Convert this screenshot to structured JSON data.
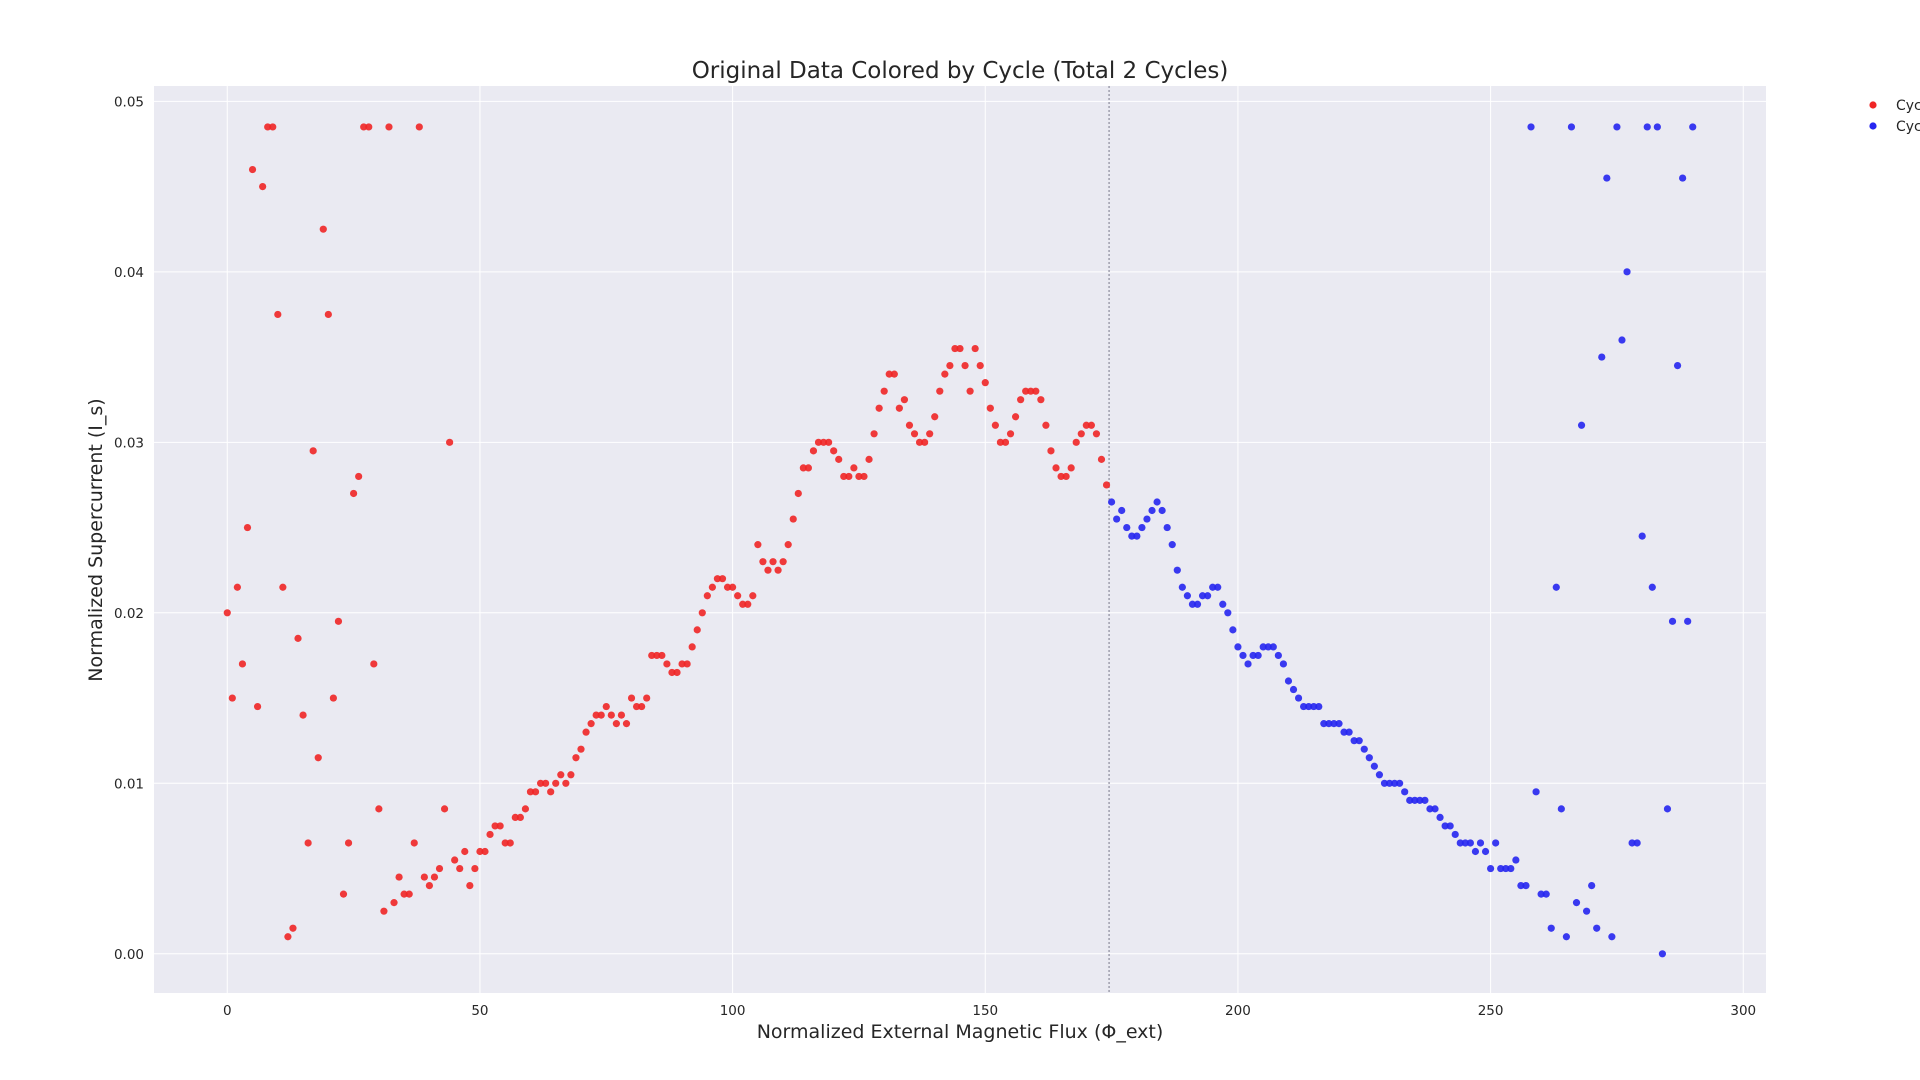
{
  "chart_data": {
    "type": "scatter",
    "title": "Original Data Colored by Cycle (Total 2 Cycles)",
    "xlabel": "Normalized External Magnetic Flux (Φ_ext)",
    "ylabel": "Normalized Supercurrent (I_s)",
    "xlim": [
      -14.5,
      304.5
    ],
    "ylim": [
      -0.0023,
      0.0509
    ],
    "xticks": [
      0,
      50,
      100,
      150,
      200,
      250,
      300
    ],
    "yticks": [
      0.0,
      0.01,
      0.02,
      0.03,
      0.04,
      0.05
    ],
    "xtick_labels": [
      "0",
      "50",
      "100",
      "150",
      "200",
      "250",
      "300"
    ],
    "ytick_labels": [
      "0.00",
      "0.01",
      "0.02",
      "0.03",
      "0.04",
      "0.05"
    ],
    "grid": true,
    "cycle_boundary_x": 174.5,
    "legend_placement": "upper-right outside",
    "colors": {
      "plot_bg": "#eaeaf2",
      "cycle1": "#f02626",
      "cycle2": "#2626f0",
      "boundary": "#8c8c9c"
    },
    "series": [
      {
        "name": "Cyc",
        "color": "#f02626",
        "x": [
          0,
          1,
          2,
          3,
          4,
          5,
          6,
          7,
          8,
          9,
          10,
          11,
          12,
          13,
          14,
          15,
          16,
          17,
          18,
          19,
          20,
          21,
          22,
          23,
          24,
          25,
          26,
          27,
          28,
          29,
          30,
          31,
          32,
          33,
          34,
          35,
          36,
          37,
          38,
          39,
          40,
          41,
          42,
          43,
          44,
          45,
          46,
          47,
          48,
          49,
          50,
          51,
          52,
          53,
          54,
          55,
          56,
          57,
          58,
          59,
          60,
          61,
          62,
          63,
          64,
          65,
          66,
          67,
          68,
          69,
          70,
          71,
          72,
          73,
          74,
          75,
          76,
          77,
          78,
          79,
          80,
          81,
          82,
          83,
          84,
          85,
          86,
          87,
          88,
          89,
          90,
          91,
          92,
          93,
          94,
          95,
          96,
          97,
          98,
          99,
          100,
          101,
          102,
          103,
          104,
          105,
          106,
          107,
          108,
          109,
          110,
          111,
          112,
          113,
          114,
          115,
          116,
          117,
          118,
          119,
          120,
          121,
          122,
          123,
          124,
          125,
          126,
          127,
          128,
          129,
          130,
          131,
          132,
          133,
          134,
          135,
          136,
          137,
          138,
          139,
          140,
          141,
          142,
          143,
          144,
          145,
          146,
          147,
          148,
          149,
          150,
          151,
          152,
          153,
          154,
          155,
          156,
          157,
          158,
          159,
          160,
          161,
          162,
          163,
          164,
          165,
          166,
          167,
          168,
          169,
          170,
          171,
          172,
          173,
          174
        ],
        "y": [
          0.02,
          0.015,
          0.0215,
          0.017,
          0.025,
          0.046,
          0.0145,
          0.045,
          0.0485,
          0.0485,
          0.0375,
          0.0215,
          0.001,
          0.0015,
          0.0185,
          0.014,
          0.0065,
          0.0295,
          0.0115,
          0.0425,
          0.0375,
          0.015,
          0.0195,
          0.0035,
          0.0065,
          0.027,
          0.028,
          0.0485,
          0.0485,
          0.017,
          0.0085,
          0.0025,
          0.0485,
          0.003,
          0.0045,
          0.0035,
          0.0035,
          0.0065,
          0.0485,
          0.0045,
          0.004,
          0.0045,
          0.005,
          0.0085,
          0.03,
          0.0055,
          0.005,
          0.006,
          0.004,
          0.005,
          0.006,
          0.006,
          0.007,
          0.0075,
          0.0075,
          0.0065,
          0.0065,
          0.008,
          0.008,
          0.0085,
          0.0095,
          0.0095,
          0.01,
          0.01,
          0.0095,
          0.01,
          0.0105,
          0.01,
          0.0105,
          0.0115,
          0.012,
          0.013,
          0.0135,
          0.014,
          0.014,
          0.0145,
          0.014,
          0.0135,
          0.014,
          0.0135,
          0.015,
          0.0145,
          0.0145,
          0.015,
          0.0175,
          0.0175,
          0.0175,
          0.017,
          0.0165,
          0.0165,
          0.017,
          0.017,
          0.018,
          0.019,
          0.02,
          0.021,
          0.0215,
          0.022,
          0.022,
          0.0215,
          0.0215,
          0.021,
          0.0205,
          0.0205,
          0.021,
          0.024,
          0.023,
          0.0225,
          0.023,
          0.0225,
          0.023,
          0.024,
          0.0255,
          0.027,
          0.0285,
          0.0285,
          0.0295,
          0.03,
          0.03,
          0.03,
          0.0295,
          0.029,
          0.028,
          0.028,
          0.0285,
          0.028,
          0.028,
          0.029,
          0.0305,
          0.032,
          0.033,
          0.034,
          0.034,
          0.032,
          0.0325,
          0.031,
          0.0305,
          0.03,
          0.03,
          0.0305,
          0.0315,
          0.033,
          0.034,
          0.0345,
          0.0355,
          0.0355,
          0.0345,
          0.033,
          0.0355,
          0.0345,
          0.0335,
          0.032,
          0.031,
          0.03,
          0.03,
          0.0305,
          0.0315,
          0.0325,
          0.033,
          0.033,
          0.033,
          0.0325,
          0.031,
          0.0295,
          0.0285,
          0.028,
          0.028,
          0.0285,
          0.03,
          0.0305,
          0.031,
          0.031,
          0.0305,
          0.029,
          0.0275
        ]
      },
      {
        "name": "Cyc",
        "color": "#2626f0",
        "x": [
          175,
          176,
          177,
          178,
          179,
          180,
          181,
          182,
          183,
          184,
          185,
          186,
          187,
          188,
          189,
          190,
          191,
          192,
          193,
          194,
          195,
          196,
          197,
          198,
          199,
          200,
          201,
          202,
          203,
          204,
          205,
          206,
          207,
          208,
          209,
          210,
          211,
          212,
          213,
          214,
          215,
          216,
          217,
          218,
          219,
          220,
          221,
          222,
          223,
          224,
          225,
          226,
          227,
          228,
          229,
          230,
          231,
          232,
          233,
          234,
          235,
          236,
          237,
          238,
          239,
          240,
          241,
          242,
          243,
          244,
          245,
          246,
          247,
          248,
          249,
          250,
          251,
          252,
          253,
          254,
          255,
          256,
          257,
          258,
          259,
          260,
          261,
          262,
          263,
          264,
          265,
          266,
          267,
          268,
          269,
          270,
          271,
          272,
          273,
          274,
          275,
          276,
          277,
          278,
          279,
          280,
          281,
          282,
          283,
          284,
          285,
          286,
          287,
          288,
          289,
          290
        ],
        "y": [
          0.0265,
          0.0255,
          0.026,
          0.025,
          0.0245,
          0.0245,
          0.025,
          0.0255,
          0.026,
          0.0265,
          0.026,
          0.025,
          0.024,
          0.0225,
          0.0215,
          0.021,
          0.0205,
          0.0205,
          0.021,
          0.021,
          0.0215,
          0.0215,
          0.0205,
          0.02,
          0.019,
          0.018,
          0.0175,
          0.017,
          0.0175,
          0.0175,
          0.018,
          0.018,
          0.018,
          0.0175,
          0.017,
          0.016,
          0.0155,
          0.015,
          0.0145,
          0.0145,
          0.0145,
          0.0145,
          0.0135,
          0.0135,
          0.0135,
          0.0135,
          0.013,
          0.013,
          0.0125,
          0.0125,
          0.012,
          0.0115,
          0.011,
          0.0105,
          0.01,
          0.01,
          0.01,
          0.01,
          0.0095,
          0.009,
          0.009,
          0.009,
          0.009,
          0.0085,
          0.0085,
          0.008,
          0.0075,
          0.0075,
          0.007,
          0.0065,
          0.0065,
          0.0065,
          0.006,
          0.0065,
          0.006,
          0.005,
          0.0065,
          0.005,
          0.005,
          0.005,
          0.0055,
          0.004,
          0.004,
          0.0485,
          0.0095,
          0.0035,
          0.0035,
          0.0015,
          0.0215,
          0.0085,
          0.001,
          0.0485,
          0.003,
          0.031,
          0.0025,
          0.004,
          0.0015,
          0.035,
          0.0455,
          0.001,
          0.0485,
          0.036,
          0.04,
          0.0065,
          0.0065,
          0.0245,
          0.0485,
          0.0215,
          0.0485,
          0.0,
          0.0085,
          0.0195,
          0.0345,
          0.0455,
          0.0195,
          0.0485
        ]
      }
    ]
  }
}
